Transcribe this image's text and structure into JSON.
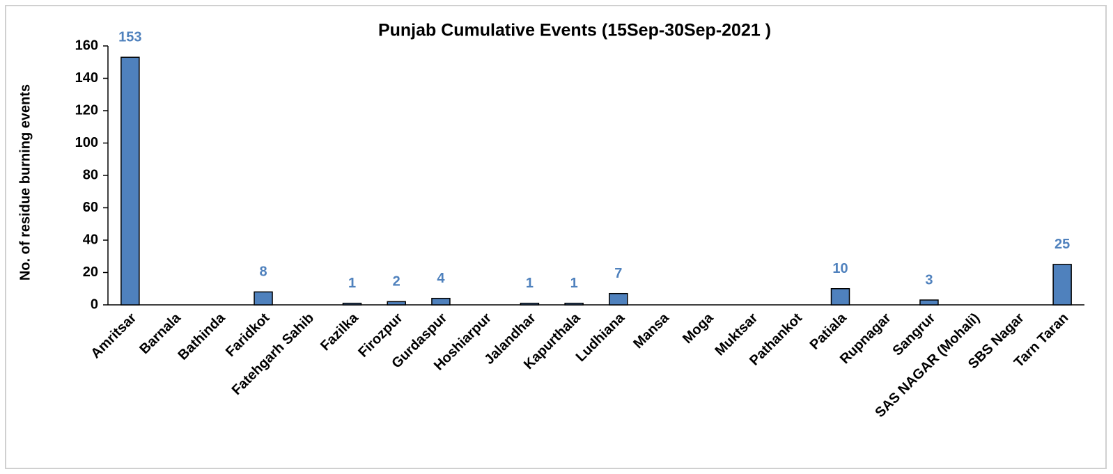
{
  "chart_data": {
    "type": "bar",
    "title": "Punjab Cumulative Events (15Sep-30Sep-2021 )",
    "y_label": "No. of residue burning events",
    "categories": [
      "Amritsar",
      "Barnala",
      "Bathinda",
      "Faridkot",
      "Fatehgarh Sahib",
      "Fazilka",
      "Firozpur",
      "Gurdaspur",
      "Hoshiarpur",
      "Jalandhar",
      "Kapurthala",
      "Ludhiana",
      "Mansa",
      "Moga",
      "Muktsar",
      "Pathankot",
      "Patiala",
      "Rupnagar",
      "Sangrur",
      "SAS NAGAR (Mohali)",
      "SBS Nagar",
      "Tarn Taran"
    ],
    "values": [
      153,
      0,
      0,
      8,
      0,
      1,
      2,
      4,
      0,
      1,
      1,
      7,
      0,
      0,
      0,
      0,
      10,
      0,
      3,
      0,
      0,
      25
    ],
    "color": "#4f81bd",
    "label_color": "#4f81bd",
    "ylim": [
      0,
      160
    ],
    "yticks": [
      0,
      20,
      40,
      60,
      80,
      100,
      120,
      140,
      160
    ],
    "grid": false
  }
}
